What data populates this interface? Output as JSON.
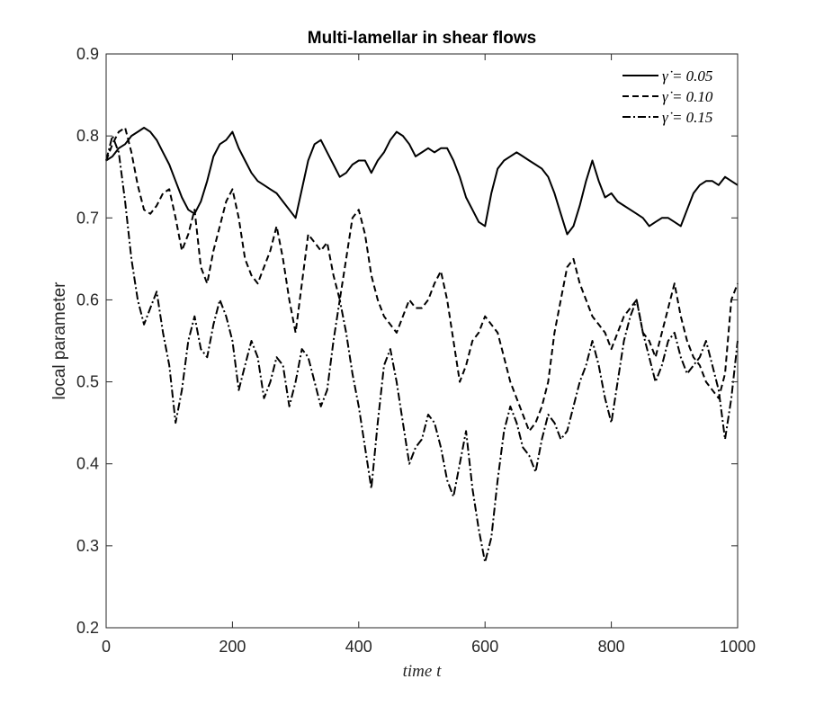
{
  "chart_data": {
    "type": "line",
    "title": "Multi-lamellar in shear flows",
    "xlabel": "time t",
    "ylabel": "local parameter",
    "xlim": [
      0,
      1000
    ],
    "ylim": [
      0.2,
      0.9
    ],
    "xticks": [
      0,
      200,
      400,
      600,
      800,
      1000
    ],
    "xtick_labels": [
      "0",
      "200",
      "400",
      "600",
      "800",
      "1000"
    ],
    "yticks": [
      0.2,
      0.3,
      0.4,
      0.5,
      0.6,
      0.7,
      0.8,
      0.9
    ],
    "ytick_labels": [
      "0.2",
      "0.3",
      "0.4",
      "0.5",
      "0.6",
      "0.7",
      "0.8",
      "0.9"
    ],
    "grid": false,
    "legend_position": "top-right",
    "colors": {
      "line": "#000000",
      "background": "#ffffff"
    },
    "series": [
      {
        "name": "γ̇ = 0.05",
        "style": "solid",
        "x": [
          0,
          10,
          20,
          30,
          40,
          50,
          60,
          70,
          80,
          90,
          100,
          110,
          120,
          130,
          140,
          150,
          160,
          170,
          180,
          190,
          200,
          210,
          220,
          230,
          240,
          250,
          260,
          270,
          280,
          290,
          300,
          310,
          320,
          330,
          340,
          350,
          360,
          370,
          380,
          390,
          400,
          410,
          420,
          430,
          440,
          450,
          460,
          470,
          480,
          490,
          500,
          510,
          520,
          530,
          540,
          550,
          560,
          570,
          580,
          590,
          600,
          610,
          620,
          630,
          640,
          650,
          660,
          670,
          680,
          690,
          700,
          710,
          720,
          730,
          740,
          750,
          760,
          770,
          780,
          790,
          800,
          810,
          820,
          830,
          840,
          850,
          860,
          870,
          880,
          890,
          900,
          910,
          920,
          930,
          940,
          950,
          960,
          970,
          980,
          990,
          1000
        ],
        "values": [
          0.77,
          0.775,
          0.785,
          0.79,
          0.8,
          0.805,
          0.81,
          0.805,
          0.795,
          0.78,
          0.765,
          0.745,
          0.725,
          0.71,
          0.705,
          0.72,
          0.745,
          0.775,
          0.79,
          0.795,
          0.805,
          0.785,
          0.77,
          0.755,
          0.745,
          0.74,
          0.735,
          0.73,
          0.72,
          0.71,
          0.7,
          0.735,
          0.77,
          0.79,
          0.795,
          0.78,
          0.765,
          0.75,
          0.755,
          0.765,
          0.77,
          0.77,
          0.755,
          0.77,
          0.78,
          0.795,
          0.805,
          0.8,
          0.79,
          0.775,
          0.78,
          0.785,
          0.78,
          0.785,
          0.785,
          0.77,
          0.75,
          0.725,
          0.71,
          0.695,
          0.69,
          0.73,
          0.76,
          0.77,
          0.775,
          0.78,
          0.775,
          0.77,
          0.765,
          0.76,
          0.75,
          0.73,
          0.705,
          0.68,
          0.69,
          0.715,
          0.745,
          0.77,
          0.745,
          0.725,
          0.73,
          0.72,
          0.715,
          0.71,
          0.705,
          0.7,
          0.69,
          0.695,
          0.7,
          0.7,
          0.695,
          0.69,
          0.71,
          0.73,
          0.74,
          0.745,
          0.745,
          0.74,
          0.75,
          0.745,
          0.74
        ]
      },
      {
        "name": "γ̇ = 0.10",
        "style": "dashed",
        "x": [
          0,
          10,
          20,
          30,
          40,
          50,
          60,
          70,
          80,
          90,
          100,
          110,
          120,
          130,
          140,
          150,
          160,
          170,
          180,
          190,
          200,
          210,
          220,
          230,
          240,
          250,
          260,
          270,
          280,
          290,
          300,
          310,
          320,
          330,
          340,
          350,
          360,
          370,
          380,
          390,
          400,
          410,
          420,
          430,
          440,
          450,
          460,
          470,
          480,
          490,
          500,
          510,
          520,
          530,
          540,
          550,
          560,
          570,
          580,
          590,
          600,
          610,
          620,
          630,
          640,
          650,
          660,
          670,
          680,
          690,
          700,
          710,
          720,
          730,
          740,
          750,
          760,
          770,
          780,
          790,
          800,
          810,
          820,
          830,
          840,
          850,
          860,
          870,
          880,
          890,
          900,
          910,
          920,
          930,
          940,
          950,
          960,
          970,
          980,
          990,
          1000
        ],
        "values": [
          0.77,
          0.79,
          0.805,
          0.81,
          0.78,
          0.74,
          0.71,
          0.705,
          0.715,
          0.73,
          0.735,
          0.7,
          0.66,
          0.68,
          0.71,
          0.64,
          0.62,
          0.66,
          0.69,
          0.72,
          0.735,
          0.7,
          0.65,
          0.63,
          0.62,
          0.64,
          0.66,
          0.69,
          0.65,
          0.6,
          0.56,
          0.62,
          0.68,
          0.67,
          0.66,
          0.67,
          0.63,
          0.6,
          0.65,
          0.7,
          0.71,
          0.68,
          0.63,
          0.6,
          0.58,
          0.57,
          0.56,
          0.58,
          0.6,
          0.59,
          0.59,
          0.6,
          0.62,
          0.635,
          0.6,
          0.55,
          0.5,
          0.52,
          0.55,
          0.56,
          0.58,
          0.57,
          0.56,
          0.53,
          0.5,
          0.48,
          0.46,
          0.44,
          0.45,
          0.47,
          0.5,
          0.56,
          0.6,
          0.64,
          0.65,
          0.62,
          0.6,
          0.58,
          0.57,
          0.56,
          0.54,
          0.56,
          0.58,
          0.59,
          0.6,
          0.56,
          0.55,
          0.53,
          0.56,
          0.59,
          0.62,
          0.58,
          0.55,
          0.53,
          0.52,
          0.5,
          0.49,
          0.48,
          0.51,
          0.6,
          0.62
        ]
      },
      {
        "name": "γ̇ = 0.15",
        "style": "dashdot",
        "x": [
          0,
          10,
          20,
          30,
          40,
          50,
          60,
          70,
          80,
          90,
          100,
          110,
          120,
          130,
          140,
          150,
          160,
          170,
          180,
          190,
          200,
          210,
          220,
          230,
          240,
          250,
          260,
          270,
          280,
          290,
          300,
          310,
          320,
          330,
          340,
          350,
          360,
          370,
          380,
          390,
          400,
          410,
          420,
          430,
          440,
          450,
          460,
          470,
          480,
          490,
          500,
          510,
          520,
          530,
          540,
          550,
          560,
          570,
          580,
          590,
          600,
          610,
          620,
          630,
          640,
          650,
          660,
          670,
          680,
          690,
          700,
          710,
          720,
          730,
          740,
          750,
          760,
          770,
          780,
          790,
          800,
          810,
          820,
          830,
          840,
          850,
          860,
          870,
          880,
          890,
          900,
          910,
          920,
          930,
          940,
          950,
          960,
          970,
          980,
          990,
          1000
        ],
        "values": [
          0.77,
          0.8,
          0.78,
          0.72,
          0.65,
          0.6,
          0.57,
          0.59,
          0.61,
          0.56,
          0.52,
          0.45,
          0.49,
          0.55,
          0.58,
          0.54,
          0.53,
          0.57,
          0.6,
          0.58,
          0.55,
          0.49,
          0.52,
          0.55,
          0.53,
          0.48,
          0.5,
          0.53,
          0.52,
          0.47,
          0.5,
          0.54,
          0.53,
          0.5,
          0.47,
          0.49,
          0.55,
          0.6,
          0.56,
          0.51,
          0.47,
          0.42,
          0.37,
          0.45,
          0.52,
          0.54,
          0.5,
          0.45,
          0.4,
          0.42,
          0.43,
          0.46,
          0.45,
          0.42,
          0.38,
          0.36,
          0.4,
          0.44,
          0.37,
          0.32,
          0.28,
          0.31,
          0.38,
          0.44,
          0.47,
          0.45,
          0.42,
          0.41,
          0.39,
          0.43,
          0.46,
          0.45,
          0.43,
          0.44,
          0.47,
          0.5,
          0.52,
          0.55,
          0.52,
          0.48,
          0.45,
          0.5,
          0.55,
          0.58,
          0.6,
          0.56,
          0.53,
          0.5,
          0.52,
          0.55,
          0.56,
          0.53,
          0.51,
          0.52,
          0.53,
          0.55,
          0.52,
          0.49,
          0.43,
          0.48,
          0.55
        ]
      }
    ]
  }
}
